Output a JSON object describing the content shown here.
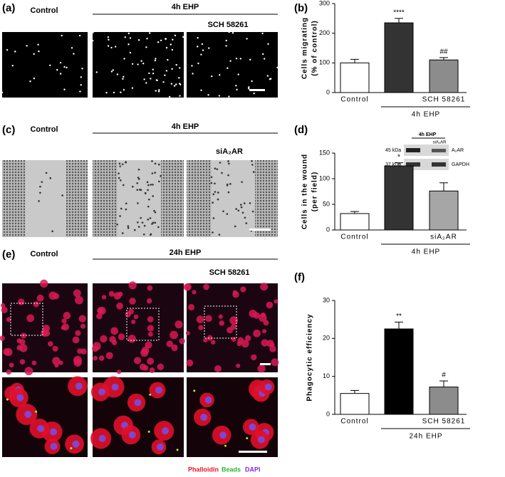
{
  "panel_labels": [
    "(a)",
    "(b)",
    "(c)",
    "(d)",
    "(e)",
    "(f)"
  ],
  "panel_a": {
    "control": "Control",
    "treatment": "4h EHP",
    "drug": "SCH 58261"
  },
  "panel_c": {
    "control": "Control",
    "treatment": "4h EHP",
    "drug": "siA₂AR"
  },
  "panel_e": {
    "control": "Control",
    "treatment": "24h EHP",
    "drug": "SCH 58261",
    "stains": [
      "Phalloidin",
      "Beads",
      "DAPI"
    ]
  },
  "blot": {
    "treatment": "4h EHP",
    "lane": "siA₂AR",
    "markers": [
      "45 kDa",
      "37 kDa"
    ],
    "proteins": [
      "A₂AR",
      "GAPDH"
    ]
  },
  "chart_data": [
    {
      "type": "bar",
      "ylabel": [
        "Cells migrating",
        "(% of control)"
      ],
      "categories": [
        "Control",
        null,
        "SCH 58261"
      ],
      "group_label": "4h EHP",
      "values": [
        100,
        235,
        110
      ],
      "errors": [
        12,
        15,
        8
      ],
      "annotations": [
        null,
        "****",
        "##"
      ],
      "colors": [
        "#ffffff",
        "#333333",
        "#8c8c8c"
      ],
      "ylim": [
        0,
        300
      ],
      "yticks": [
        0,
        100,
        200,
        300
      ]
    },
    {
      "type": "bar",
      "ylabel": [
        "Cells in the wound",
        "(per field)"
      ],
      "categories": [
        "Control",
        null,
        "siA₂AR"
      ],
      "group_label": "4h EHP",
      "values": [
        32,
        125,
        76
      ],
      "errors": [
        4,
        6,
        16
      ],
      "annotations": [
        null,
        "*",
        null
      ],
      "colors": [
        "#ffffff",
        "#333333",
        "#a6a6a6"
      ],
      "ylim": [
        0,
        150
      ],
      "yticks": [
        0,
        50,
        100,
        150
      ]
    },
    {
      "type": "bar",
      "ylabel": [
        "Phagocytic efficiency"
      ],
      "categories": [
        "Control",
        null,
        "SCH 58261"
      ],
      "group_label": "24h EHP",
      "values": [
        5.5,
        22.5,
        7.2
      ],
      "errors": [
        0.8,
        1.8,
        1.6
      ],
      "annotations": [
        null,
        "**",
        "#"
      ],
      "colors": [
        "#ffffff",
        "#000000",
        "#8c8c8c"
      ],
      "ylim": [
        0,
        30
      ],
      "yticks": [
        0,
        10,
        20,
        30
      ]
    }
  ]
}
